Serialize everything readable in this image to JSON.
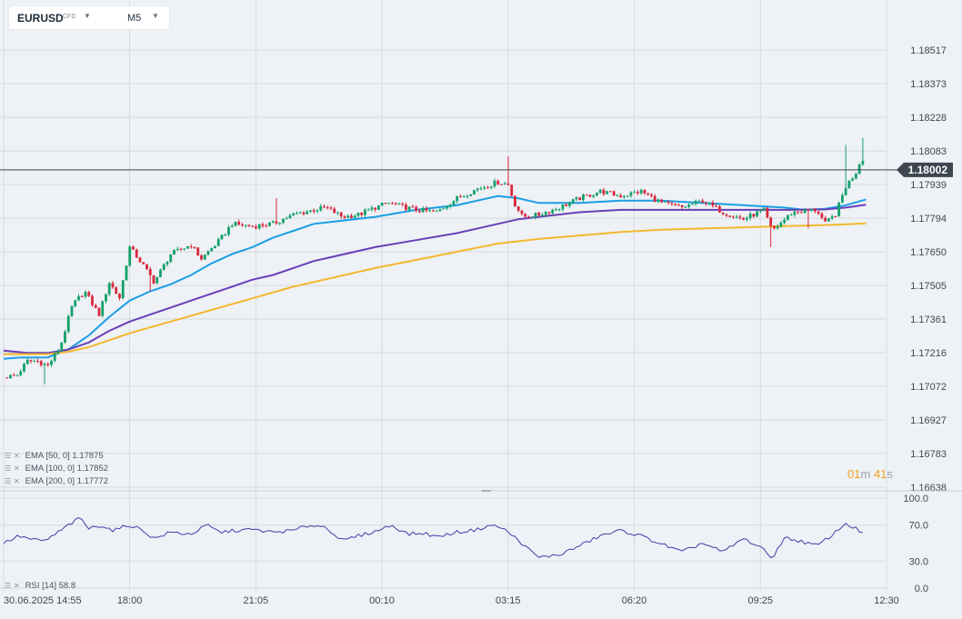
{
  "toolbar": {
    "symbol": "EURUSD",
    "instrument_type": "CFD",
    "timeframe": "M5",
    "dropdown_icon": "chevron-down-icon"
  },
  "current_price": "1.18002",
  "countdown": {
    "minutes": "01",
    "minutes_unit": "m",
    "seconds": "41",
    "seconds_unit": "s"
  },
  "legend": {
    "ema": [
      {
        "label": "EMA [50,  0]",
        "value": "1.17875",
        "color": "#1a9ee4"
      },
      {
        "label": "EMA [100,  0]",
        "value": "1.17852",
        "color": "#6a3fb8"
      },
      {
        "label": "EMA [200,  0]",
        "value": "1.17772",
        "color": "#f3b82e"
      }
    ],
    "rsi": {
      "label": "RSI [14]",
      "value": "58.8",
      "color": "#3b3fa8"
    }
  },
  "colors": {
    "bull": "#13a06a",
    "bear": "#d8283d",
    "background": "#eef1f5",
    "grid": "#d6dbe1"
  },
  "chart_data": [
    {
      "type": "candlestick",
      "title": "EURUSD M5",
      "ylim": [
        1.16638,
        1.18662
      ],
      "y_ticks": [
        "1.18517",
        "1.18373",
        "1.18228",
        "1.18083",
        "1.17939",
        "1.17794",
        "1.17650",
        "1.17505",
        "1.17361",
        "1.17216",
        "1.17072",
        "1.16927",
        "1.16783",
        "1.16638"
      ],
      "x_ticks": [
        "30.06.2025  14:55",
        "18:00",
        "21:05",
        "00:10",
        "03:15",
        "06:20",
        "09:25",
        "12:30"
      ],
      "anchors": [
        [
          14.92,
          1.1711
        ],
        [
          15.25,
          1.1712
        ],
        [
          15.5,
          1.1718
        ],
        [
          15.75,
          1.1718
        ],
        [
          16.0,
          1.1716
        ],
        [
          16.3,
          1.1724
        ],
        [
          16.6,
          1.1742
        ],
        [
          16.9,
          1.1748
        ],
        [
          17.25,
          1.1738
        ],
        [
          17.5,
          1.1752
        ],
        [
          17.75,
          1.1745
        ],
        [
          18.0,
          1.1767
        ],
        [
          18.3,
          1.176
        ],
        [
          18.6,
          1.1752
        ],
        [
          19.0,
          1.1764
        ],
        [
          19.5,
          1.1768
        ],
        [
          19.75,
          1.1762
        ],
        [
          20.2,
          1.177
        ],
        [
          20.5,
          1.1777
        ],
        [
          21.0,
          1.1776
        ],
        [
          21.5,
          1.1777
        ],
        [
          22.0,
          1.1781
        ],
        [
          22.5,
          1.1783
        ],
        [
          22.8,
          1.1784
        ],
        [
          23.2,
          1.178
        ],
        [
          23.6,
          1.1781
        ],
        [
          24.0,
          1.1784
        ],
        [
          24.3,
          1.1786
        ],
        [
          25.0,
          1.1783
        ],
        [
          25.5,
          1.1782
        ],
        [
          26.0,
          1.1788
        ],
        [
          26.5,
          1.1792
        ],
        [
          27.0,
          1.1795
        ],
        [
          27.25,
          1.1794
        ],
        [
          27.4,
          1.1786
        ],
        [
          27.6,
          1.178
        ],
        [
          28.0,
          1.1781
        ],
        [
          28.5,
          1.1784
        ],
        [
          29.0,
          1.1788
        ],
        [
          29.5,
          1.1791
        ],
        [
          30.0,
          1.1789
        ],
        [
          30.5,
          1.1791
        ],
        [
          31.0,
          1.1786
        ],
        [
          31.5,
          1.1784
        ],
        [
          32.0,
          1.1787
        ],
        [
          32.5,
          1.1782
        ],
        [
          33.0,
          1.1779
        ],
        [
          33.5,
          1.1783
        ],
        [
          33.7,
          1.1774
        ],
        [
          34.2,
          1.1782
        ],
        [
          34.8,
          1.1783
        ],
        [
          35.0,
          1.1777
        ],
        [
          35.25,
          1.1781
        ],
        [
          35.5,
          1.1793
        ],
        [
          35.75,
          1.1799
        ],
        [
          35.9,
          1.1806
        ],
        [
          36.0,
          1.1801
        ]
      ],
      "wick_highs": [
        [
          21.6,
          1.1788
        ],
        [
          27.25,
          1.1806
        ],
        [
          35.5,
          1.1811
        ],
        [
          35.9,
          1.1814
        ]
      ],
      "wick_lows": [
        [
          15.9,
          1.1708
        ],
        [
          18.5,
          1.1748
        ],
        [
          33.7,
          1.1767
        ],
        [
          34.6,
          1.1775
        ]
      ],
      "price_line": 1.18002,
      "series": [
        {
          "name": "EMA [50,  0]",
          "x": [
            14.92,
            15.3,
            16.0,
            16.5,
            17.0,
            17.5,
            18.0,
            18.5,
            19.0,
            19.5,
            20.0,
            20.5,
            21.0,
            21.5,
            22.0,
            22.5,
            23.0,
            24.0,
            25.0,
            26.0,
            26.5,
            27.0,
            27.5,
            28.0,
            29.0,
            30.0,
            31.0,
            32.0,
            33.0,
            34.0,
            34.5,
            35.0,
            35.5,
            36.0
          ],
          "values": [
            1.1719,
            1.17195,
            1.17196,
            1.1723,
            1.1729,
            1.1737,
            1.1744,
            1.1748,
            1.1751,
            1.1755,
            1.176,
            1.1764,
            1.1767,
            1.1771,
            1.1774,
            1.1777,
            1.1778,
            1.178,
            1.1783,
            1.1785,
            1.1787,
            1.1789,
            1.1788,
            1.1786,
            1.1786,
            1.1787,
            1.1787,
            1.1786,
            1.1785,
            1.1784,
            1.1783,
            1.17835,
            1.1785,
            1.17875
          ]
        },
        {
          "name": "EMA [100,  0]",
          "x": [
            14.92,
            15.5,
            16.0,
            16.5,
            17.0,
            17.5,
            18.0,
            18.5,
            19.0,
            19.5,
            20.0,
            20.5,
            21.0,
            21.5,
            22.0,
            22.5,
            23.0,
            24.0,
            25.0,
            26.0,
            27.0,
            27.5,
            28.0,
            29.0,
            30.0,
            31.0,
            32.0,
            33.0,
            34.0,
            35.0,
            35.5,
            36.0
          ],
          "values": [
            1.17225,
            1.17215,
            1.17215,
            1.1723,
            1.1726,
            1.1731,
            1.1735,
            1.1738,
            1.1741,
            1.1744,
            1.1747,
            1.175,
            1.1753,
            1.1755,
            1.1758,
            1.1761,
            1.1763,
            1.1767,
            1.177,
            1.1773,
            1.1777,
            1.1779,
            1.178,
            1.1782,
            1.1783,
            1.1783,
            1.1783,
            1.1783,
            1.1783,
            1.17832,
            1.1784,
            1.17852
          ]
        },
        {
          "name": "EMA [200,  0]",
          "x": [
            14.92,
            15.5,
            16.0,
            16.5,
            17.0,
            17.5,
            18.0,
            18.5,
            19.0,
            20.0,
            21.0,
            22.0,
            23.0,
            24.0,
            25.0,
            26.0,
            27.0,
            28.0,
            29.0,
            30.0,
            31.0,
            32.0,
            33.0,
            34.0,
            34.5,
            35.0,
            35.5,
            36.0
          ],
          "values": [
            1.1721,
            1.1721,
            1.1721,
            1.1722,
            1.1724,
            1.1727,
            1.173,
            1.17325,
            1.1735,
            1.174,
            1.1745,
            1.175,
            1.1754,
            1.1758,
            1.17615,
            1.1765,
            1.17685,
            1.17705,
            1.1772,
            1.17735,
            1.17745,
            1.1775,
            1.17755,
            1.1776,
            1.17762,
            1.17765,
            1.17768,
            1.17772
          ]
        }
      ]
    },
    {
      "type": "line",
      "ylim": [
        0,
        100
      ],
      "y_ticks": [
        "100.0",
        "70.0",
        "30.0",
        "0.0"
      ],
      "anchors": [
        [
          14.92,
          50
        ],
        [
          15.3,
          58
        ],
        [
          15.6,
          54
        ],
        [
          15.9,
          52
        ],
        [
          16.2,
          60
        ],
        [
          16.5,
          70
        ],
        [
          16.8,
          78
        ],
        [
          17.0,
          66
        ],
        [
          17.3,
          70
        ],
        [
          17.6,
          64
        ],
        [
          18.0,
          70
        ],
        [
          18.3,
          65
        ],
        [
          18.6,
          55
        ],
        [
          19.0,
          62
        ],
        [
          19.5,
          60
        ],
        [
          19.9,
          70
        ],
        [
          20.2,
          62
        ],
        [
          20.6,
          64
        ],
        [
          21.0,
          65
        ],
        [
          21.5,
          62
        ],
        [
          22.0,
          64
        ],
        [
          22.4,
          70
        ],
        [
          22.8,
          68
        ],
        [
          23.2,
          52
        ],
        [
          23.5,
          57
        ],
        [
          24.0,
          63
        ],
        [
          24.4,
          70
        ],
        [
          24.8,
          60
        ],
        [
          25.2,
          61
        ],
        [
          25.5,
          57
        ],
        [
          26.0,
          62
        ],
        [
          26.5,
          65
        ],
        [
          26.8,
          70
        ],
        [
          27.1,
          67
        ],
        [
          27.4,
          57
        ],
        [
          27.7,
          45
        ],
        [
          28.0,
          34
        ],
        [
          28.5,
          37
        ],
        [
          29.0,
          47
        ],
        [
          29.5,
          58
        ],
        [
          30.0,
          64
        ],
        [
          30.5,
          58
        ],
        [
          31.0,
          49
        ],
        [
          31.5,
          40
        ],
        [
          32.0,
          50
        ],
        [
          32.5,
          40
        ],
        [
          33.0,
          55
        ],
        [
          33.4,
          46
        ],
        [
          33.7,
          33
        ],
        [
          34.0,
          56
        ],
        [
          34.4,
          52
        ],
        [
          34.8,
          47
        ],
        [
          35.2,
          60
        ],
        [
          35.5,
          72
        ],
        [
          35.75,
          66
        ],
        [
          36.0,
          58.8
        ]
      ]
    }
  ]
}
